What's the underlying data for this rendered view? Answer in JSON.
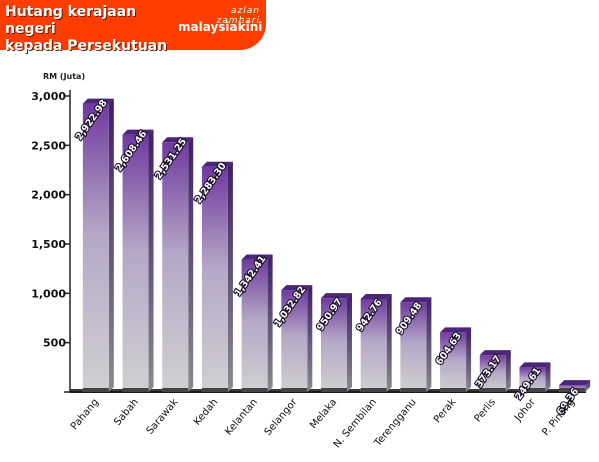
{
  "header": {
    "title_line1": "Hutang kerajaan negeri",
    "title_line2": "kepada Persekutuan",
    "byline": "azlan zamhari",
    "brand": "malaysiakini"
  },
  "colors": {
    "banner": "#ff3d00",
    "bar_top": "#6f3a9e",
    "bar_bottom": "#d0d0d2"
  },
  "chart_data": {
    "type": "bar",
    "title": "",
    "ylabel": "RM (Juta)",
    "xlabel": "",
    "ylim": [
      0,
      3000
    ],
    "yticks": [
      0,
      500,
      1000,
      1500,
      2000,
      2500,
      3000
    ],
    "ytick_labels": [
      "",
      "500",
      "1,000",
      "1,500",
      "2,000",
      "2,500",
      "3,000"
    ],
    "grid": false,
    "categories": [
      "Pahang",
      "Sabah",
      "Sarawak",
      "Kedah",
      "Kelantan",
      "Selangor",
      "Melaka",
      "N. Sembilan",
      "Terengganu",
      "Perak",
      "Perlis",
      "Johor",
      "P. Pinang"
    ],
    "values": [
      2922.98,
      2608.46,
      2531.25,
      2283.3,
      1342.41,
      1032.82,
      950.97,
      942.76,
      909.48,
      604.63,
      373.17,
      249.61,
      69.36
    ],
    "data_labels": [
      "2,922.98",
      "2,608.46",
      "2,531.25",
      "2,283.30",
      "1,342.41",
      "1,032.82",
      "950.97",
      "942.76",
      "909.48",
      "604.63",
      "373.17",
      "249.61",
      "69.36"
    ]
  }
}
